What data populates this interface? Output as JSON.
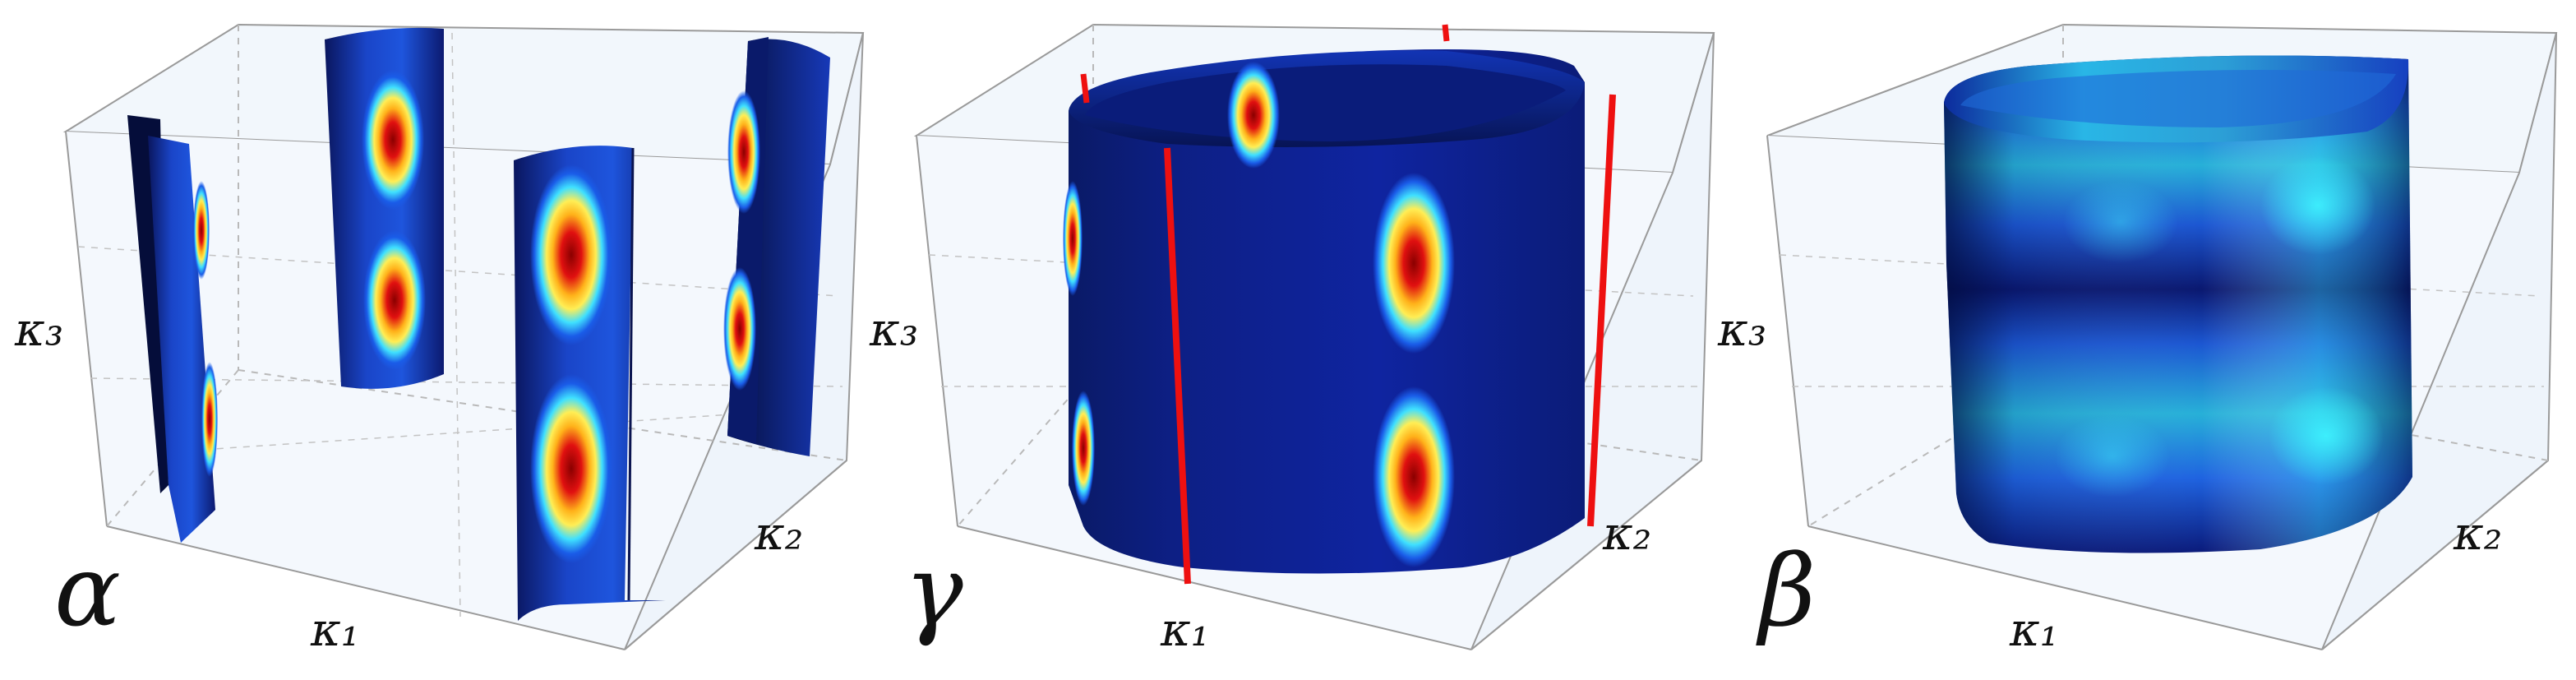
{
  "panels": [
    {
      "id": "alpha",
      "label": "α",
      "axes": {
        "x": "κ₁",
        "y": "κ₂",
        "z": "κ₃"
      }
    },
    {
      "id": "gamma",
      "label": "γ",
      "axes": {
        "x": "κ₁",
        "y": "κ₂",
        "z": "κ₃"
      }
    },
    {
      "id": "beta",
      "label": "β",
      "axes": {
        "x": "κ₁",
        "y": "κ₂",
        "z": "κ₃"
      }
    }
  ],
  "colors": {
    "box_face": "#eef4fb",
    "box_edge": "#8a8a8a",
    "grid": "#b5b5b5",
    "surface_dark": "#0a1a6e",
    "surface_mid": "#1c4fd6",
    "hot_red": "#b30000",
    "hot_yellow": "#ffe14a",
    "cyan": "#1fe3ff",
    "nodal_line": "#ee1010"
  }
}
